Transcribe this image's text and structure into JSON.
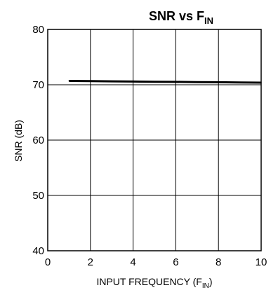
{
  "chart_data": {
    "type": "line",
    "title": {
      "main": "SNR vs F",
      "subscript": "IN"
    },
    "xlabel": {
      "main": "INPUT FREQUENCY (F",
      "subscript": "IN",
      "suffix": ")"
    },
    "ylabel": "SNR (dB)",
    "xlim": [
      0,
      10
    ],
    "ylim": [
      40,
      80
    ],
    "x_ticks": [
      0,
      2,
      4,
      6,
      8,
      10
    ],
    "y_ticks": [
      40,
      50,
      60,
      70,
      80
    ],
    "grid": true,
    "legend": "none",
    "series": [
      {
        "color": "#000000",
        "x": [
          1,
          2,
          3,
          4,
          5,
          6,
          7,
          8,
          9,
          10
        ],
        "y": [
          70.7,
          70.66,
          70.62,
          70.58,
          70.55,
          70.52,
          70.48,
          70.45,
          70.42,
          70.38
        ]
      }
    ]
  }
}
